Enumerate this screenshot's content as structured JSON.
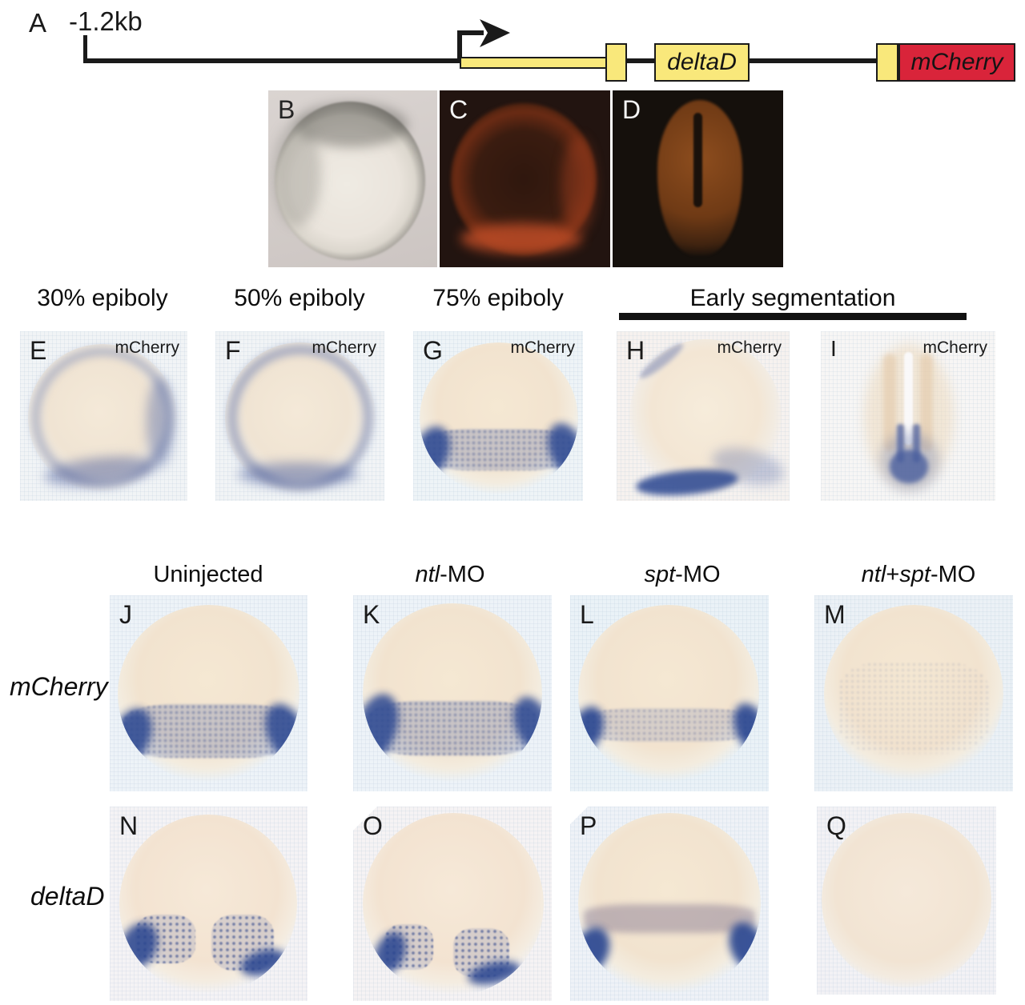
{
  "panel_a": {
    "label": "A",
    "scale_label": "-1.2kb",
    "boxes": [
      {
        "label": "deltaD"
      },
      {
        "label": "mCherry"
      }
    ],
    "colors": {
      "exon_yellow": "#f9e87b",
      "mcherry_red": "#d9243a",
      "line_black": "#1a1a1a"
    }
  },
  "photo_panels": [
    {
      "label": "B"
    },
    {
      "label": "C"
    },
    {
      "label": "D"
    }
  ],
  "stages": [
    {
      "label": "30% epiboly"
    },
    {
      "label": "50% epiboly"
    },
    {
      "label": "75% epiboly"
    },
    {
      "label": "Early segmentation",
      "underlined": true
    }
  ],
  "insitu_panels": [
    {
      "label": "E",
      "probe": "mCherry"
    },
    {
      "label": "F",
      "probe": "mCherry"
    },
    {
      "label": "G",
      "probe": "mCherry"
    },
    {
      "label": "H",
      "probe": "mCherry"
    },
    {
      "label": "I",
      "probe": "mCherry"
    }
  ],
  "grid": {
    "column_headers": [
      {
        "segments": [
          {
            "text": "Uninjected",
            "italic": false
          }
        ]
      },
      {
        "segments": [
          {
            "text": "ntl",
            "italic": true
          },
          {
            "text": "-MO",
            "italic": false
          }
        ]
      },
      {
        "segments": [
          {
            "text": "spt",
            "italic": true
          },
          {
            "text": "-MO",
            "italic": false
          }
        ]
      },
      {
        "segments": [
          {
            "text": "ntl",
            "italic": true
          },
          {
            "text": "+",
            "italic": false
          },
          {
            "text": "spt",
            "italic": true
          },
          {
            "text": "-MO",
            "italic": false
          }
        ]
      }
    ],
    "row_labels": [
      {
        "label": "mCherry"
      },
      {
        "label": "deltaD"
      }
    ],
    "panels": {
      "row_mcherry": [
        {
          "label": "J"
        },
        {
          "label": "K"
        },
        {
          "label": "L"
        },
        {
          "label": "M"
        }
      ],
      "row_deltad": [
        {
          "label": "N"
        },
        {
          "label": "O"
        },
        {
          "label": "P"
        },
        {
          "label": "Q"
        }
      ]
    },
    "stain_blue": "#2f4a92",
    "segmentation_bar_color": "#111111"
  }
}
